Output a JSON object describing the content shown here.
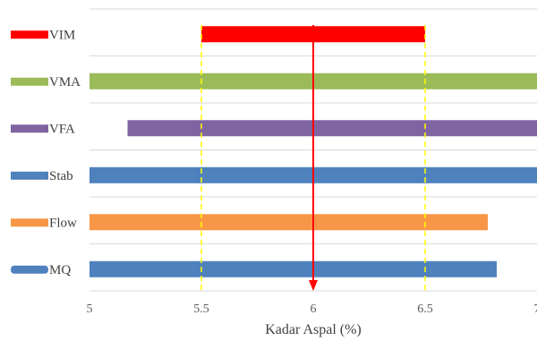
{
  "chart_data": {
    "type": "bar",
    "orientation": "horizontal",
    "xlabel": "Kadar Aspal (%)",
    "ylabel": "",
    "xlim": [
      5,
      7
    ],
    "xticks": [
      5,
      5.5,
      6,
      6.5,
      7
    ],
    "xtick_labels": [
      "5",
      "5.5",
      "6",
      "6.5",
      "7"
    ],
    "grid": "horizontal",
    "series": [
      {
        "name": "VIM",
        "start": 5.5,
        "end": 6.5,
        "color": "#ff0000"
      },
      {
        "name": "VMA",
        "start": 5.0,
        "end": 7.0,
        "color": "#9bbb59"
      },
      {
        "name": "VFA",
        "start": 5.17,
        "end": 7.0,
        "color": "#8064a2"
      },
      {
        "name": "Stab",
        "start": 5.0,
        "end": 7.0,
        "color": "#4f81bd"
      },
      {
        "name": "Flow",
        "start": 5.0,
        "end": 6.78,
        "color": "#f79646"
      },
      {
        "name": "MQ",
        "start": 5.0,
        "end": 6.82,
        "color": "#4f81bd"
      }
    ],
    "reference_lines": [
      {
        "x": 5.5,
        "color": "#ffff00",
        "style": "dashed"
      },
      {
        "x": 6.5,
        "color": "#ffff00",
        "style": "dashed"
      }
    ],
    "optimum_arrow": {
      "x": 6,
      "color": "#ff0000"
    }
  }
}
